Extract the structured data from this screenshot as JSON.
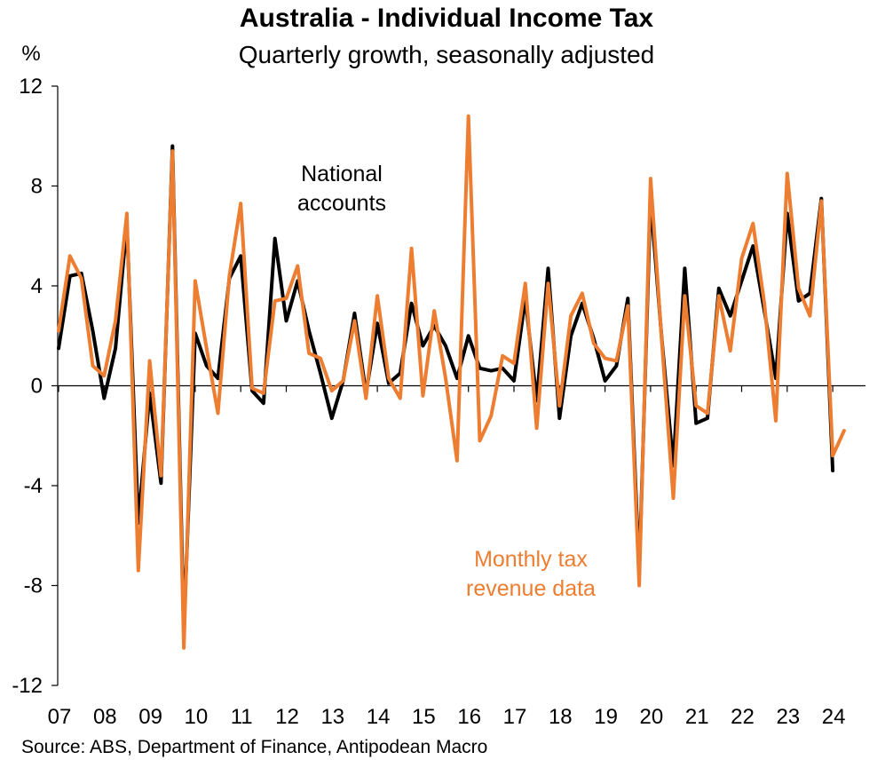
{
  "title": "Australia - Individual Income Tax",
  "subtitle": "Quarterly growth, seasonally adjusted",
  "source": "Source: ABS, Department of Finance, Antipodean Macro",
  "colors": {
    "national_accounts": "#000000",
    "monthly_tax": "#ED7D31",
    "axis": "#000000"
  },
  "chart_data": {
    "type": "line",
    "title": "Australia - Individual Income Tax",
    "subtitle": "Quarterly growth, seasonally adjusted",
    "ylabel": "%",
    "xlabel": "",
    "ylim": [
      -12,
      12
    ],
    "yticks": [
      12,
      8,
      4,
      0,
      -4,
      -8,
      -12
    ],
    "yticks_labels": [
      "12",
      "8",
      "4",
      "0",
      "-4",
      "-8",
      "-12"
    ],
    "x_start": "2007-Q1",
    "x_end": "2024-Q3",
    "xtick_labels": [
      "07",
      "08",
      "09",
      "10",
      "11",
      "12",
      "13",
      "14",
      "15",
      "16",
      "17",
      "18",
      "19",
      "20",
      "21",
      "22",
      "23",
      "24"
    ],
    "grid": false,
    "annotations": [
      {
        "text": "National\naccounts",
        "series": "National accounts"
      },
      {
        "text": "Monthly tax\nrevenue data",
        "series": "Monthly tax revenue data"
      }
    ],
    "series": [
      {
        "name": "National accounts",
        "color": "#000000",
        "values": [
          1.5,
          4.4,
          4.5,
          2.2,
          -0.5,
          1.5,
          6.5,
          -5.5,
          -0.3,
          -3.9,
          9.6,
          -9.8,
          2.1,
          0.8,
          0.3,
          4.3,
          5.2,
          -0.2,
          -0.7,
          5.9,
          2.6,
          4.2,
          2.2,
          0.5,
          -1.3,
          0.2,
          2.9,
          -0.3,
          2.5,
          0.1,
          0.5,
          3.3,
          1.6,
          2.4,
          1.6,
          0.3,
          2.0,
          0.7,
          0.6,
          0.7,
          0.2,
          3.5,
          -0.6,
          4.7,
          -1.3,
          2.0,
          3.3,
          1.9,
          0.2,
          0.8,
          3.5,
          -7.5,
          7.5,
          1.8,
          -3.2,
          4.7,
          -1.5,
          -1.3,
          3.9,
          2.8,
          4.2,
          5.6,
          3.0,
          0.3,
          6.9,
          3.4,
          3.7,
          7.5,
          -3.4
        ]
      },
      {
        "name": "Monthly tax revenue data",
        "color": "#ED7D31",
        "values": [
          2.2,
          5.2,
          4.3,
          0.8,
          0.4,
          2.6,
          6.9,
          -7.4,
          1.0,
          -3.6,
          9.4,
          -10.5,
          4.2,
          1.5,
          -1.1,
          4.4,
          7.3,
          -0.1,
          -0.3,
          3.4,
          3.5,
          4.8,
          1.3,
          1.1,
          -0.2,
          0.2,
          2.6,
          -0.5,
          3.6,
          0.3,
          -0.5,
          5.5,
          -0.4,
          3.0,
          0.3,
          -3.0,
          10.8,
          -2.2,
          -1.2,
          1.2,
          0.9,
          4.1,
          -1.7,
          4.1,
          -0.8,
          2.8,
          3.7,
          1.7,
          1.1,
          1.0,
          3.2,
          -8.0,
          8.3,
          1.7,
          -4.5,
          3.6,
          -0.8,
          -1.1,
          3.6,
          1.4,
          5.1,
          6.5,
          3.3,
          -1.4,
          8.5,
          3.9,
          2.8,
          7.4,
          -2.8,
          -1.8
        ]
      }
    ]
  }
}
